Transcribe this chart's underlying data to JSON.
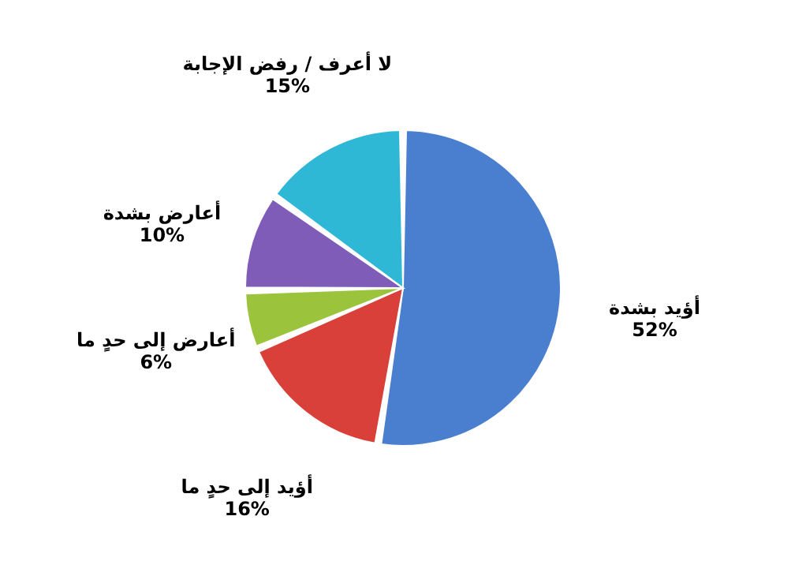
{
  "chart_data": {
    "type": "pie",
    "categories": [
      "أؤيد بشدة",
      "أؤيد إلى حدٍ ما",
      "أعارض إلى حدٍ ما",
      "أعارض بشدة",
      "لا أعرف / رفض الإجابة"
    ],
    "values": [
      52,
      16,
      6,
      10,
      15
    ],
    "value_labels": [
      "52%",
      "16%",
      "6%",
      "10%",
      "15%"
    ],
    "colors": [
      "#4a7fcf",
      "#d9403a",
      "#9bc43c",
      "#7e5cb8",
      "#2fb8d6"
    ],
    "legend": false
  }
}
